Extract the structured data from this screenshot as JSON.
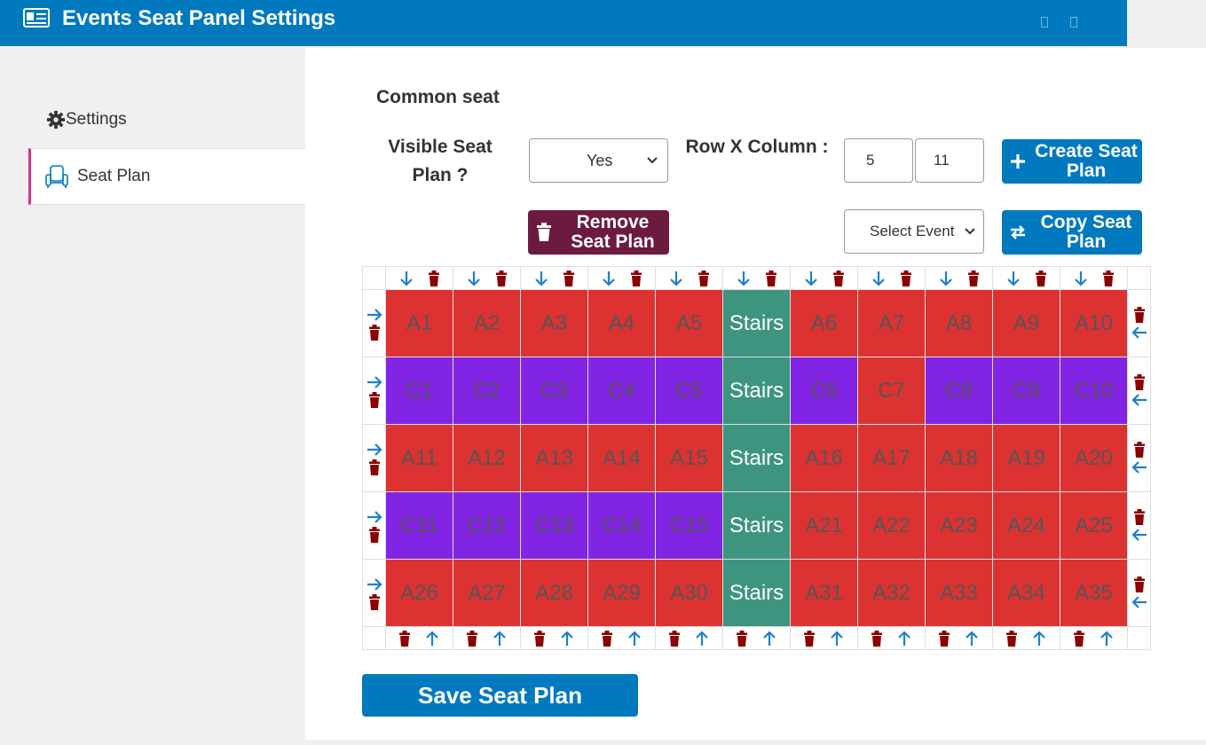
{
  "app": {
    "title": "Events Seat Panel Settings"
  },
  "sidebar": {
    "items": [
      {
        "label": "Settings"
      },
      {
        "label": "Seat Plan"
      }
    ]
  },
  "section": {
    "title": "Common seat"
  },
  "form": {
    "visible_label": "Visible Seat Plan ?",
    "visible_value": "Yes",
    "rowcol_label": "Row X Column :",
    "rows": "5",
    "columns": "11",
    "create_label": "Create Seat Plan",
    "remove_label": "Remove Seat Plan",
    "event_select": "Select Event",
    "copy_label": "Copy Seat Plan"
  },
  "seat_plan": {
    "rows": [
      [
        "A1",
        "A2",
        "A3",
        "A4",
        "A5",
        "Stairs",
        "A6",
        "A7",
        "A8",
        "A9",
        "A10"
      ],
      [
        "C1",
        "C2",
        "C3",
        "C4",
        "C5",
        "Stairs",
        "C6",
        "C7",
        "C8",
        "C9",
        "C10"
      ],
      [
        "A11",
        "A12",
        "A13",
        "A14",
        "A15",
        "Stairs",
        "A16",
        "A17",
        "A18",
        "A19",
        "A20"
      ],
      [
        "C11",
        "C12",
        "C13",
        "C14",
        "C15",
        "Stairs",
        "A21",
        "A22",
        "A23",
        "A24",
        "A25"
      ],
      [
        "A26",
        "A27",
        "A28",
        "A29",
        "A30",
        "Stairs",
        "A31",
        "A32",
        "A33",
        "A34",
        "A35"
      ]
    ],
    "colors": [
      [
        "red",
        "red",
        "red",
        "red",
        "red",
        "stairs",
        "red",
        "red",
        "red",
        "red",
        "red"
      ],
      [
        "purple",
        "purple",
        "purple",
        "purple",
        "purple",
        "stairs",
        "purple",
        "red",
        "purple",
        "purple",
        "purple"
      ],
      [
        "red",
        "red",
        "red",
        "red",
        "red",
        "stairs",
        "red",
        "red",
        "red",
        "red",
        "red"
      ],
      [
        "purple",
        "purple",
        "purple",
        "purple",
        "purple",
        "stairs",
        "red",
        "red",
        "red",
        "red",
        "red"
      ],
      [
        "red",
        "red",
        "red",
        "red",
        "red",
        "stairs",
        "red",
        "red",
        "red",
        "red",
        "red"
      ]
    ]
  },
  "save_label": "Save Seat Plan",
  "colors": {
    "brand": "#0079bf",
    "seat_red": "#dc3232",
    "seat_purple": "#8224e3",
    "stairs": "#3d9580",
    "remove": "#6d1a40",
    "delete_icon": "#8b0000",
    "arrow": "#1e7fd0"
  }
}
